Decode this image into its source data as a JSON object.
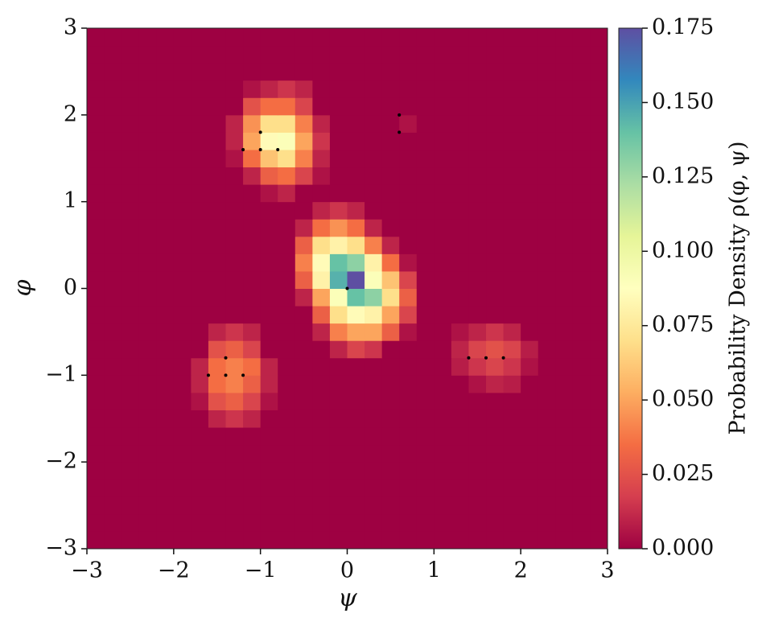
{
  "chart_data": {
    "type": "heatmap",
    "xlabel": "ψ",
    "ylabel": "φ",
    "colorbar_label": "Probability Density ρ(φ, ψ)",
    "xlim": [
      -3,
      3
    ],
    "ylim": [
      -3,
      3
    ],
    "xticks": [
      {
        "value": -3,
        "label": "−3"
      },
      {
        "value": -2,
        "label": "−2"
      },
      {
        "value": -1,
        "label": "−1"
      },
      0,
      1,
      2,
      3
    ],
    "yticks": [
      {
        "value": -3,
        "label": "−3"
      },
      {
        "value": -2,
        "label": "−2"
      },
      {
        "value": -1,
        "label": "−1"
      },
      0,
      1,
      2,
      3
    ],
    "clim": [
      0,
      0.175
    ],
    "cticks": [
      {
        "value": 0,
        "label": "0.000"
      },
      {
        "value": 0.025,
        "label": "0.025"
      },
      {
        "value": 0.05,
        "label": "0.050"
      },
      {
        "value": 0.075,
        "label": "0.075"
      },
      {
        "value": 0.1,
        "label": "0.100"
      },
      {
        "value": 0.125,
        "label": "0.125"
      },
      {
        "value": 0.15,
        "label": "0.150"
      },
      {
        "value": 0.175,
        "label": "0.175"
      }
    ],
    "colormap": [
      "#9e0142",
      "#d53e4f",
      "#f46d43",
      "#fdae61",
      "#fee08b",
      "#ffffbf",
      "#e6f598",
      "#abdda4",
      "#66c2a5",
      "#3288bd",
      "#5e4fa2"
    ],
    "xbins": [
      -3,
      -2.8,
      -2.6,
      -2.4,
      -2.2,
      -2,
      -1.8,
      -1.6,
      -1.4,
      -1.2,
      -1,
      -0.8,
      -0.6,
      -0.4,
      -0.2,
      0,
      0.2,
      0.4,
      0.6,
      0.8,
      1,
      1.2,
      1.4,
      1.6,
      1.8,
      2,
      2.2,
      2.4,
      2.6,
      2.8,
      3
    ],
    "ybins": [
      -3,
      -2.8,
      -2.6,
      -2.4,
      -2.2,
      -2,
      -1.8,
      -1.6,
      -1.4,
      -1.2,
      -1,
      -0.8,
      -0.6,
      -0.4,
      -0.2,
      0,
      0.2,
      0.4,
      0.6,
      0.8,
      1,
      1.2,
      1.4,
      1.6,
      1.8,
      2,
      2.2,
      2.4,
      2.6,
      2.8,
      3
    ],
    "z": [
      [
        0,
        0,
        0,
        0,
        0,
        0,
        0,
        0,
        0,
        0,
        0,
        0,
        0,
        0,
        0,
        0,
        0,
        0,
        0,
        0,
        0,
        0,
        0,
        0,
        0,
        0,
        0,
        0,
        0,
        0
      ],
      [
        0,
        0,
        0,
        0,
        0,
        0,
        0,
        0,
        0,
        0,
        0,
        0,
        0,
        0,
        0,
        0,
        0,
        0,
        0,
        0,
        0,
        0,
        0,
        0,
        0,
        0,
        0,
        0,
        0,
        0
      ],
      [
        0,
        0,
        0,
        0,
        0,
        0,
        0,
        0,
        0,
        0,
        0,
        0,
        0,
        0,
        0,
        0,
        0,
        0,
        0,
        0,
        0,
        0,
        0,
        0,
        0,
        0,
        0,
        0,
        0,
        0
      ],
      [
        0,
        0,
        0,
        0,
        0,
        0,
        0,
        0,
        0,
        0,
        0,
        0,
        0,
        0,
        0,
        0,
        0,
        0,
        0,
        0,
        0,
        0,
        0,
        0,
        0,
        0,
        0,
        0,
        0,
        0
      ],
      [
        0,
        0,
        0,
        0,
        0,
        0,
        0,
        0,
        0,
        0,
        0,
        0,
        0,
        0,
        0,
        0,
        0,
        0,
        0,
        0,
        0,
        0,
        0,
        0,
        0,
        0,
        0,
        0,
        0,
        0
      ],
      [
        0,
        0,
        0,
        0,
        0,
        0,
        0,
        0,
        0,
        0,
        0,
        0,
        0,
        0,
        0,
        0,
        0,
        0,
        0,
        0,
        0,
        0,
        0,
        0,
        0,
        0,
        0,
        0,
        0,
        0
      ],
      [
        0,
        0,
        0,
        0,
        0,
        0,
        0,
        0,
        0,
        0,
        0,
        0,
        0,
        0,
        0,
        0,
        0,
        0,
        0,
        0,
        0,
        0,
        0,
        0,
        0,
        0,
        0,
        0,
        0,
        0
      ],
      [
        0,
        0,
        0,
        0,
        0,
        0,
        0,
        0.01,
        0.015,
        0.01,
        0,
        0,
        0,
        0,
        0,
        0,
        0,
        0,
        0,
        0,
        0,
        0,
        0,
        0,
        0,
        0,
        0,
        0,
        0,
        0
      ],
      [
        0,
        0,
        0,
        0,
        0,
        0,
        0.005,
        0.025,
        0.03,
        0.02,
        0.005,
        0,
        0,
        0,
        0,
        0,
        0,
        0,
        0,
        0,
        0,
        0,
        0,
        0,
        0,
        0,
        0,
        0,
        0,
        0
      ],
      [
        0,
        0,
        0,
        0,
        0,
        0,
        0.01,
        0.035,
        0.04,
        0.03,
        0.01,
        0,
        0,
        0,
        0,
        0,
        0,
        0,
        0,
        0,
        0,
        0,
        0.005,
        0.01,
        0.008,
        0,
        0,
        0,
        0,
        0
      ],
      [
        0,
        0,
        0,
        0,
        0,
        0,
        0.01,
        0.035,
        0.04,
        0.035,
        0.01,
        0,
        0,
        0,
        0,
        0,
        0,
        0,
        0,
        0,
        0,
        0.008,
        0.015,
        0.02,
        0.015,
        0.005,
        0,
        0,
        0,
        0
      ],
      [
        0,
        0,
        0,
        0,
        0,
        0,
        0,
        0.025,
        0.03,
        0.02,
        0,
        0,
        0,
        0,
        0.01,
        0.02,
        0.015,
        0,
        0,
        0,
        0,
        0.01,
        0.02,
        0.025,
        0.02,
        0.008,
        0,
        0,
        0,
        0
      ],
      [
        0,
        0,
        0,
        0,
        0,
        0,
        0,
        0.01,
        0.015,
        0.01,
        0,
        0,
        0,
        0.01,
        0.04,
        0.05,
        0.05,
        0.03,
        0.005,
        0,
        0,
        0.005,
        0.01,
        0.015,
        0.01,
        0,
        0,
        0,
        0,
        0
      ],
      [
        0,
        0,
        0,
        0,
        0,
        0,
        0,
        0,
        0,
        0,
        0,
        0,
        0,
        0.03,
        0.07,
        0.085,
        0.08,
        0.05,
        0.02,
        0,
        0,
        0,
        0,
        0,
        0,
        0,
        0,
        0,
        0,
        0
      ],
      [
        0,
        0,
        0,
        0,
        0,
        0,
        0,
        0,
        0,
        0,
        0,
        0,
        0.01,
        0.05,
        0.09,
        0.14,
        0.13,
        0.07,
        0.03,
        0,
        0,
        0,
        0,
        0,
        0,
        0,
        0,
        0,
        0,
        0
      ],
      [
        0,
        0,
        0,
        0,
        0,
        0,
        0,
        0,
        0,
        0,
        0,
        0,
        0.03,
        0.08,
        0.145,
        0.175,
        0.09,
        0.06,
        0.02,
        0,
        0,
        0,
        0,
        0,
        0,
        0,
        0,
        0,
        0,
        0
      ],
      [
        0,
        0,
        0,
        0,
        0,
        0,
        0,
        0,
        0,
        0,
        0,
        0,
        0.04,
        0.085,
        0.14,
        0.13,
        0.08,
        0.035,
        0.005,
        0,
        0,
        0,
        0,
        0,
        0,
        0,
        0,
        0,
        0,
        0
      ],
      [
        0,
        0,
        0,
        0,
        0,
        0,
        0,
        0,
        0,
        0,
        0,
        0,
        0.03,
        0.07,
        0.08,
        0.07,
        0.04,
        0.01,
        0,
        0,
        0,
        0,
        0,
        0,
        0,
        0,
        0,
        0,
        0,
        0
      ],
      [
        0,
        0,
        0,
        0,
        0,
        0,
        0,
        0,
        0,
        0,
        0,
        0,
        0.01,
        0.035,
        0.045,
        0.035,
        0.01,
        0,
        0,
        0,
        0,
        0,
        0,
        0,
        0,
        0,
        0,
        0,
        0,
        0
      ],
      [
        0,
        0,
        0,
        0,
        0,
        0,
        0,
        0,
        0,
        0,
        0,
        0,
        0,
        0.01,
        0.015,
        0.01,
        0,
        0,
        0,
        0,
        0,
        0,
        0,
        0,
        0,
        0,
        0,
        0,
        0,
        0
      ],
      [
        0,
        0,
        0,
        0,
        0,
        0,
        0,
        0,
        0,
        0,
        0.005,
        0.01,
        0,
        0,
        0,
        0,
        0,
        0,
        0,
        0,
        0,
        0,
        0,
        0,
        0,
        0,
        0,
        0,
        0,
        0
      ],
      [
        0,
        0,
        0,
        0,
        0,
        0,
        0,
        0,
        0,
        0.01,
        0.03,
        0.035,
        0.02,
        0.005,
        0,
        0,
        0,
        0,
        0,
        0,
        0,
        0,
        0,
        0,
        0,
        0,
        0,
        0,
        0,
        0
      ],
      [
        0,
        0,
        0,
        0,
        0,
        0,
        0,
        0,
        0.005,
        0.035,
        0.06,
        0.07,
        0.04,
        0.01,
        0,
        0,
        0,
        0,
        0,
        0,
        0,
        0,
        0,
        0,
        0,
        0,
        0,
        0,
        0,
        0
      ],
      [
        0,
        0,
        0,
        0,
        0,
        0,
        0,
        0,
        0.01,
        0.05,
        0.085,
        0.09,
        0.05,
        0.015,
        0,
        0,
        0,
        0,
        0,
        0,
        0,
        0,
        0,
        0,
        0,
        0,
        0,
        0,
        0,
        0
      ],
      [
        0,
        0,
        0,
        0,
        0,
        0,
        0,
        0,
        0.01,
        0.045,
        0.07,
        0.07,
        0.04,
        0.01,
        0,
        0,
        0,
        0,
        0.005,
        0,
        0,
        0,
        0,
        0,
        0,
        0,
        0,
        0,
        0,
        0
      ],
      [
        0,
        0,
        0,
        0,
        0,
        0,
        0,
        0,
        0,
        0.025,
        0.035,
        0.035,
        0.02,
        0,
        0,
        0,
        0,
        0,
        0,
        0,
        0,
        0,
        0,
        0,
        0,
        0,
        0,
        0,
        0,
        0
      ],
      [
        0,
        0,
        0,
        0,
        0,
        0,
        0,
        0,
        0,
        0.005,
        0.01,
        0.015,
        0.01,
        0,
        0,
        0,
        0,
        0,
        0,
        0,
        0,
        0,
        0,
        0,
        0,
        0,
        0,
        0,
        0,
        0
      ],
      [
        0,
        0,
        0,
        0,
        0,
        0,
        0,
        0,
        0,
        0,
        0,
        0,
        0,
        0,
        0,
        0,
        0,
        0,
        0,
        0,
        0,
        0,
        0,
        0,
        0,
        0,
        0,
        0,
        0,
        0
      ],
      [
        0,
        0,
        0,
        0,
        0,
        0,
        0,
        0,
        0,
        0,
        0,
        0,
        0,
        0,
        0,
        0,
        0,
        0,
        0,
        0,
        0,
        0,
        0,
        0,
        0,
        0,
        0,
        0,
        0,
        0
      ],
      [
        0,
        0,
        0,
        0,
        0,
        0,
        0,
        0,
        0,
        0,
        0,
        0,
        0,
        0,
        0,
        0,
        0,
        0,
        0,
        0,
        0,
        0,
        0,
        0,
        0,
        0,
        0,
        0,
        0,
        0
      ]
    ],
    "points": {
      "color": "#000000",
      "x": [
        -1,
        -1.2,
        -1,
        -0.8,
        0.6,
        0.6,
        0,
        -1.4,
        -1.6,
        -1.4,
        -1.2,
        1.4,
        1.6,
        1.8
      ],
      "y": [
        1.8,
        1.6,
        1.6,
        1.6,
        2,
        1.8,
        0,
        -0.8,
        -1,
        -1,
        -1,
        -0.8,
        -0.8,
        -0.8
      ]
    }
  }
}
